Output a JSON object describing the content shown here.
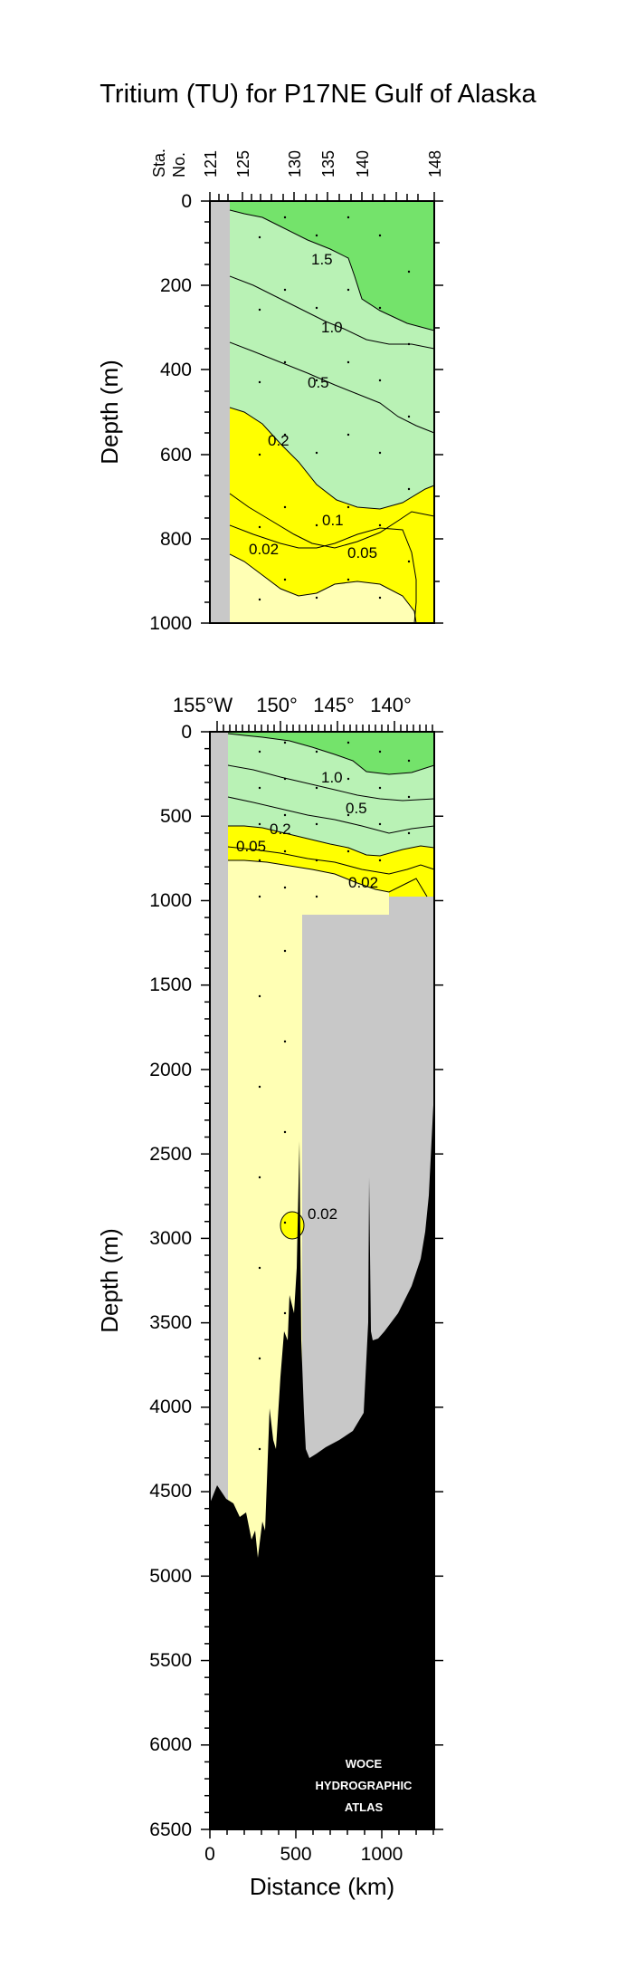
{
  "title": "Tritium (TU) for P17NE Gulf of Alaska",
  "colors": {
    "green_dark": "#74e36b",
    "green_light": "#b9f2b5",
    "yellow": "#ffff00",
    "yellow_light": "#ffffb4",
    "land_gray": "#c8c8c8",
    "bottom": "#000000"
  },
  "chart_data": [
    {
      "type": "contour",
      "panel": "top",
      "ylabel": "Depth (m)",
      "ylim": [
        0,
        1000
      ],
      "yticks": [
        "0",
        "200",
        "400",
        "600",
        "800",
        "1000"
      ],
      "station_header": [
        "Sta.",
        "No."
      ],
      "stations": [
        "121",
        "125",
        "130",
        "135",
        "140",
        "148"
      ],
      "contour_labels": [
        "1.5",
        "1.0",
        "0.5",
        "0.2",
        "0.1",
        "0.05",
        "0.02"
      ],
      "contour_levels": [
        1.5,
        1.0,
        0.5,
        0.2,
        0.1,
        0.05,
        0.02
      ]
    },
    {
      "type": "contour",
      "panel": "bottom",
      "ylabel": "Depth (m)",
      "xlabel": "Distance (km)",
      "ylim": [
        0,
        6500
      ],
      "xlim": [
        0,
        1300
      ],
      "yticks": [
        "0",
        "500",
        "1000",
        "1500",
        "2000",
        "2500",
        "3000",
        "3500",
        "4000",
        "4500",
        "5000",
        "5500",
        "6000",
        "6500"
      ],
      "xticks": [
        "0",
        "500",
        "1000"
      ],
      "longitude_labels": [
        "155°W",
        "150°",
        "145°",
        "140°"
      ],
      "contour_labels": [
        "1.0",
        "0.5",
        "0.2",
        "0.05",
        "0.02",
        "0.02"
      ],
      "watermark": [
        "WOCE",
        "HYDROGRAPHIC",
        "ATLAS"
      ]
    }
  ]
}
